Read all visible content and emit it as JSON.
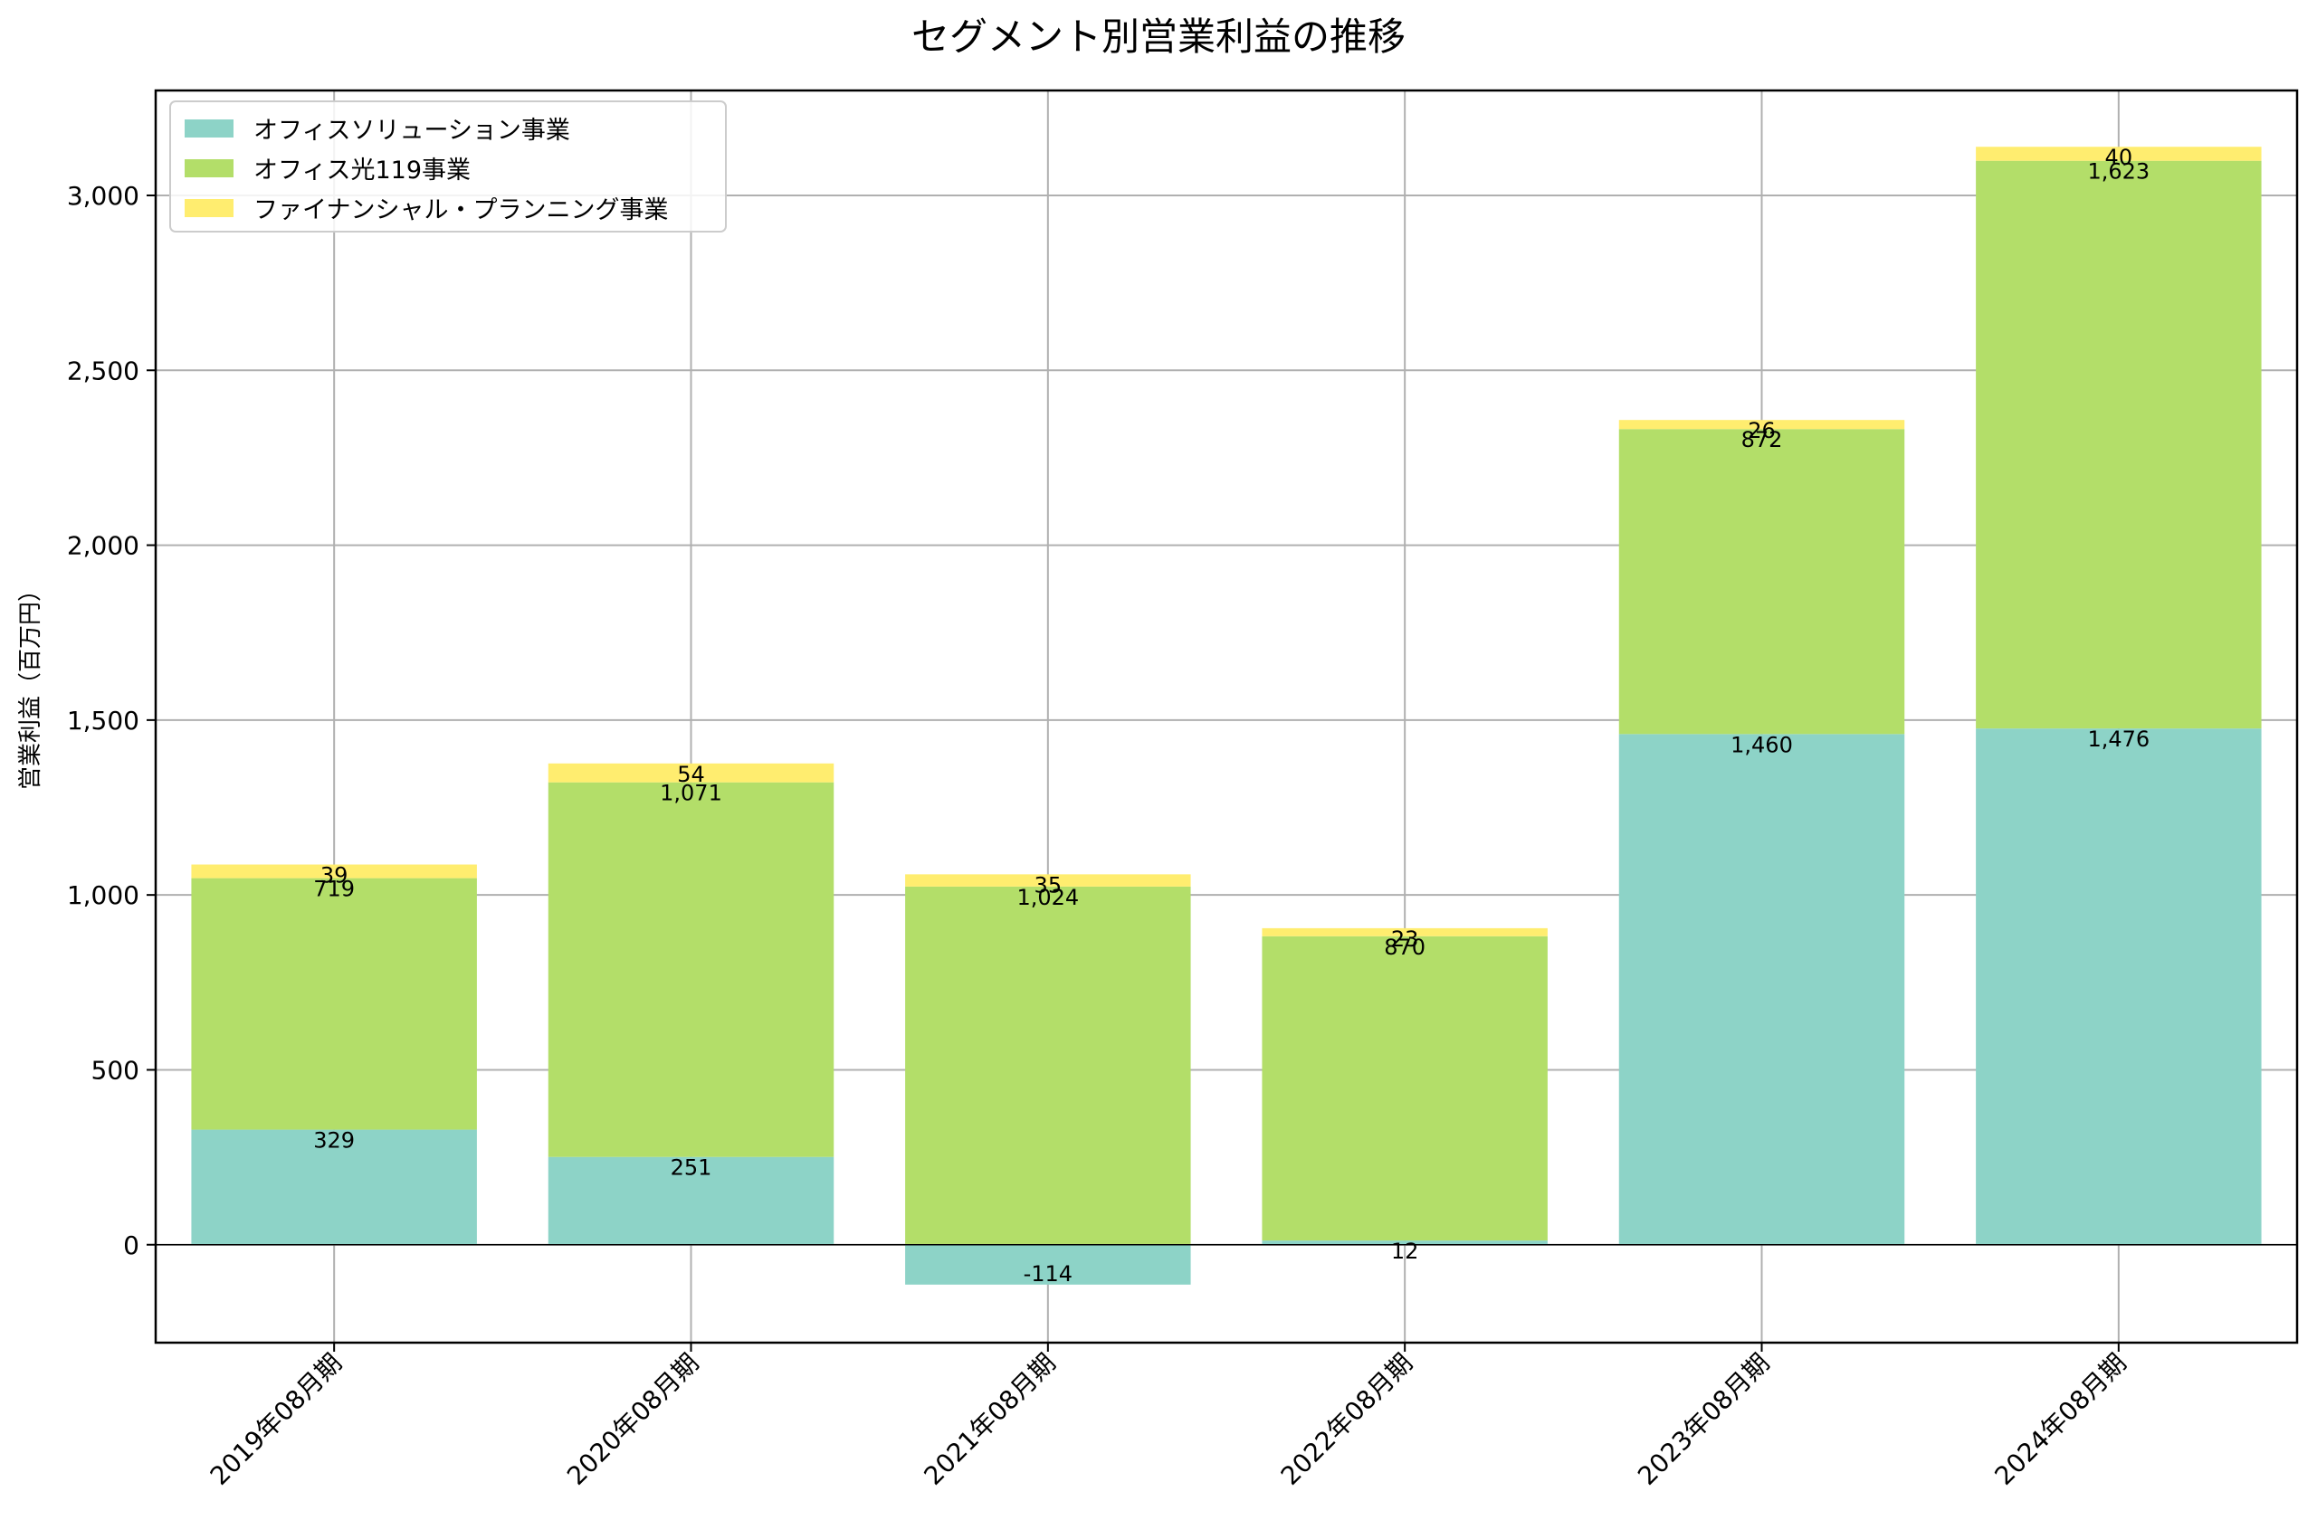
{
  "chart_data": {
    "type": "bar",
    "stacked": true,
    "title": "セグメント別営業利益の推移",
    "xlabel": "",
    "ylabel": "営業利益（百万円）",
    "categories": [
      "2019年08月期",
      "2020年08月期",
      "2021年08月期",
      "2022年08月期",
      "2023年08月期",
      "2024年08月期"
    ],
    "series": [
      {
        "name": "オフィスソリューション事業",
        "color": "#8dd3c7",
        "values": [
          329,
          251,
          -114,
          12,
          1460,
          1476
        ]
      },
      {
        "name": "オフィス光119事業",
        "color": "#b3de69",
        "values": [
          719,
          1071,
          1024,
          870,
          872,
          1623
        ]
      },
      {
        "name": "ファイナンシャル・プランニング事業",
        "color": "#ffed6f",
        "values": [
          39,
          54,
          35,
          23,
          26,
          40
        ]
      }
    ],
    "ylim": [
      -280,
      3300
    ],
    "yticks": [
      0,
      500,
      1000,
      1500,
      2000,
      2500,
      3000
    ],
    "ytick_labels": [
      "0",
      "500",
      "1,000",
      "1,500",
      "2,000",
      "2,500",
      "3,000"
    ],
    "grid": true,
    "legend_position": "top-left",
    "data_labels": true
  }
}
